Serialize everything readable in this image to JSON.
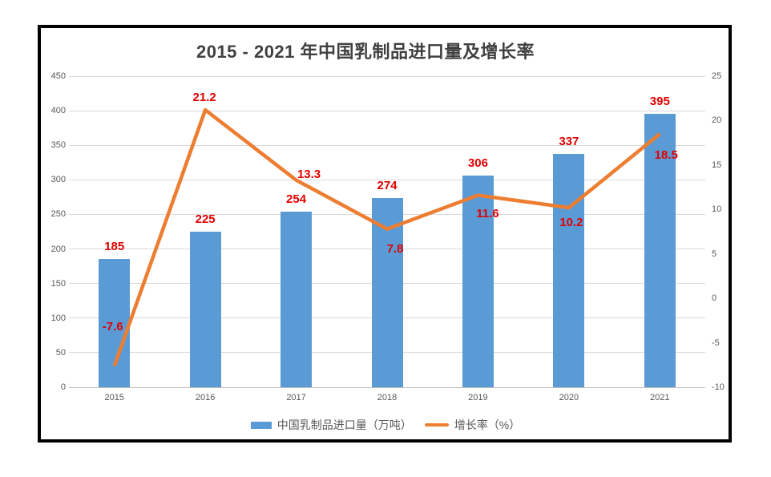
{
  "chart_data": {
    "type": "combo",
    "title": "2015 - 2021 年中国乳制品进口量及增长率",
    "categories": [
      "2015",
      "2016",
      "2017",
      "2018",
      "2019",
      "2020",
      "2021"
    ],
    "series": [
      {
        "name": "中国乳制品进口量（万吨）",
        "type": "bar",
        "axis": "left",
        "color": "#5B9BD5",
        "values": [
          185,
          225,
          254,
          274,
          306,
          337,
          395
        ]
      },
      {
        "name": "增长率（%）",
        "type": "line",
        "axis": "right",
        "color": "#ED7D31",
        "values": [
          -7.6,
          21.2,
          13.3,
          7.8,
          11.6,
          10.2,
          18.5
        ]
      }
    ],
    "left_axis": {
      "min": 0,
      "max": 450,
      "step": 50,
      "tick_labels": [
        "0",
        "50",
        "100",
        "150",
        "200",
        "250",
        "300",
        "350",
        "400",
        "450"
      ]
    },
    "right_axis": {
      "min": -10,
      "max": 25,
      "step": 5,
      "tick_labels": [
        "-10",
        "-5",
        "0",
        "5",
        "10",
        "15",
        "20",
        "25"
      ]
    },
    "data_labels": {
      "bar": [
        "185",
        "225",
        "254",
        "274",
        "306",
        "337",
        "395"
      ],
      "line": [
        "-7.6",
        "21.2",
        "13.3",
        "7.8",
        "11.6",
        "10.2",
        "18.5"
      ],
      "color": "#E00000"
    },
    "grid": true,
    "legend_position": "bottom",
    "legend": [
      {
        "label": "中国乳制品进口量（万吨）",
        "swatch": "bar-square",
        "color": "#5B9BD5"
      },
      {
        "label": "增长率（%）",
        "swatch": "line-dash",
        "color": "#ED7D31"
      }
    ],
    "colors": {
      "title": "#404040",
      "axis_text": "#595959",
      "gridline": "#D9D9D9",
      "axis_line": "#BFBFBF",
      "frame_border": "#000000",
      "background": "#FFFFFF"
    }
  }
}
